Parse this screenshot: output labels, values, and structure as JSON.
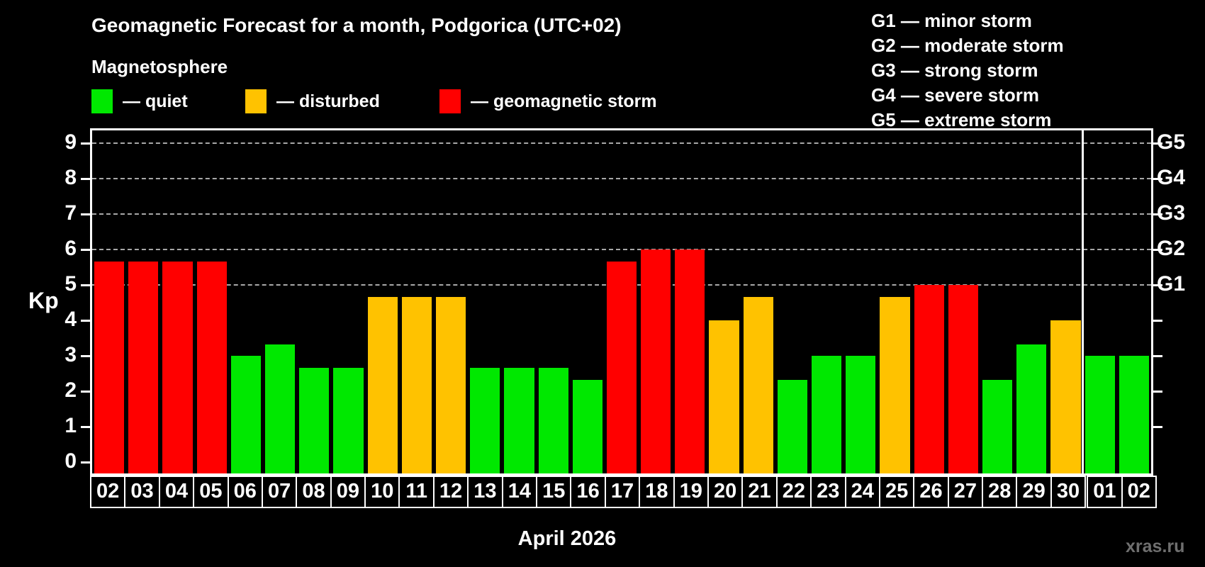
{
  "header": {
    "subtitle": "Magnetosphere",
    "legend": [
      {
        "key": "quiet",
        "label": "— quiet",
        "color": "#00e800"
      },
      {
        "key": "disturbed",
        "label": "— disturbed",
        "color": "#ffc200"
      },
      {
        "key": "storm",
        "label": "— geomagnetic storm",
        "color": "#ff0000"
      }
    ],
    "g_scale_legend": [
      "G1 — minor storm",
      "G2 — moderate storm",
      "G3 — strong storm",
      "G4 — severe storm",
      "G5 — extreme storm"
    ]
  },
  "chart_data": {
    "type": "bar",
    "title": "Geomagnetic Forecast for a month, Podgorica (UTC+02)",
    "ylabel": "Kp",
    "xlabel": "April 2026",
    "ylim": [
      0,
      9
    ],
    "yticks": [
      0,
      1,
      2,
      3,
      4,
      5,
      6,
      7,
      8,
      9
    ],
    "gridline_kp": [
      5,
      6,
      7,
      8,
      9
    ],
    "grid": "horizontal dashed lines at Kp 5-9 only",
    "legend_position": "top-left",
    "right_axis": {
      "ticks_kp": [
        1,
        2,
        3,
        4,
        5,
        6,
        7,
        8,
        9
      ],
      "labels": [
        {
          "kp": 5,
          "label": "G1"
        },
        {
          "kp": 6,
          "label": "G2"
        },
        {
          "kp": 7,
          "label": "G3"
        },
        {
          "kp": 8,
          "label": "G4"
        },
        {
          "kp": 9,
          "label": "G5"
        }
      ]
    },
    "categories": [
      "02",
      "03",
      "04",
      "05",
      "06",
      "07",
      "08",
      "09",
      "10",
      "11",
      "12",
      "13",
      "14",
      "15",
      "16",
      "17",
      "18",
      "19",
      "20",
      "21",
      "22",
      "23",
      "24",
      "25",
      "26",
      "27",
      "28",
      "29",
      "30",
      "01",
      "02"
    ],
    "values": [
      5.67,
      5.67,
      5.67,
      5.67,
      3,
      3.33,
      2.67,
      2.67,
      4.67,
      4.67,
      4.67,
      2.67,
      2.67,
      2.67,
      2.33,
      5.67,
      6,
      6,
      4,
      4.67,
      2.33,
      3,
      3,
      4.67,
      5,
      5,
      2.33,
      3.33,
      4,
      3,
      3
    ],
    "conditions": [
      "storm",
      "storm",
      "storm",
      "storm",
      "quiet",
      "quiet",
      "quiet",
      "quiet",
      "disturbed",
      "disturbed",
      "disturbed",
      "quiet",
      "quiet",
      "quiet",
      "quiet",
      "storm",
      "storm",
      "storm",
      "disturbed",
      "disturbed",
      "quiet",
      "quiet",
      "quiet",
      "disturbed",
      "storm",
      "storm",
      "quiet",
      "quiet",
      "disturbed",
      "quiet",
      "quiet"
    ],
    "month_separator_before_index": 29,
    "colors": {
      "quiet": "#00e800",
      "disturbed": "#ffc200",
      "storm": "#ff0000"
    }
  },
  "footer": {
    "watermark": "xras.ru"
  }
}
